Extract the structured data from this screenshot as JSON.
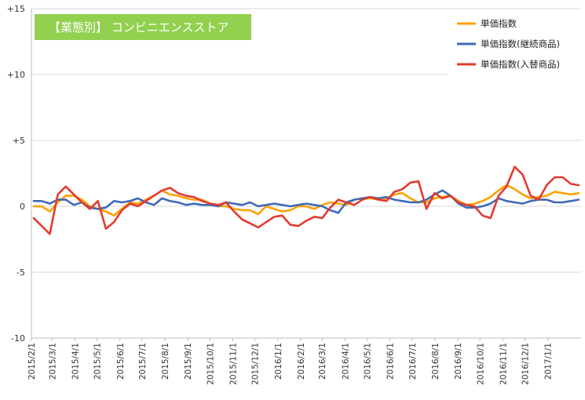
{
  "chart_data": {
    "type": "line",
    "title": "【業態別】 コンビニエンスストア",
    "title_bg": "#92d050",
    "ylim": [
      -10,
      15
    ],
    "yticks": [
      {
        "value": 15,
        "label": "+15"
      },
      {
        "value": 10,
        "label": "+10"
      },
      {
        "value": 5,
        "label": "+5"
      },
      {
        "value": 0,
        "label": "0"
      },
      {
        "value": -5,
        "label": "-5"
      },
      {
        "value": -10,
        "label": "-10"
      }
    ],
    "grid": true,
    "legend_position": "top-right",
    "x_start": "2015/2/1",
    "x_end": "2017/2/15",
    "x_ticks": [
      "2015/2/1",
      "2015/3/1",
      "2015/4/1",
      "2015/5/1",
      "2015/6/1",
      "2015/7/1",
      "2015/8/1",
      "2015/9/1",
      "2015/10/1",
      "2015/11/1",
      "2015/12/1",
      "2016/1/1",
      "2016/2/1",
      "2016/3/1",
      "2016/4/1",
      "2016/5/1",
      "2016/6/1",
      "2016/7/1",
      "2016/8/1",
      "2016/9/1",
      "2016/10/1",
      "2016/11/1",
      "2016/12/1",
      "2017/1/1"
    ],
    "series": [
      {
        "name": "単価指数",
        "color": "#ffa000",
        "values": [
          0,
          0,
          -0.4,
          0.3,
          0.8,
          0.8,
          0.5,
          0,
          -0.2,
          -0.4,
          -0.7,
          -0.2,
          0.3,
          0.2,
          0.5,
          0.8,
          1.2,
          0.9,
          0.8,
          0.6,
          0.5,
          0.5,
          0.2,
          0,
          0,
          -0.2,
          -0.3,
          -0.3,
          -0.6,
          0,
          -0.2,
          -0.4,
          -0.3,
          0,
          0,
          -0.2,
          0.1,
          0.3,
          0.2,
          0.1,
          0.5,
          0.6,
          0.6,
          0.5,
          0.6,
          0.9,
          1.0,
          0.6,
          0.3,
          0.3,
          0.6,
          0.7,
          0.8,
          0.4,
          0.1,
          0.2,
          0.4,
          0.7,
          1.2,
          1.6,
          1.3,
          0.9,
          0.6,
          0.7,
          0.8,
          1.1,
          1.0,
          0.9,
          1.0
        ]
      },
      {
        "name": "単価指数(継続商品)",
        "color": "#3f69b8",
        "values": [
          0.4,
          0.4,
          0.2,
          0.5,
          0.5,
          0.1,
          0.3,
          -0.1,
          -0.2,
          -0.1,
          0.4,
          0.3,
          0.4,
          0.6,
          0.3,
          0.1,
          0.6,
          0.4,
          0.3,
          0.1,
          0.2,
          0.1,
          0.1,
          0,
          0.3,
          0.2,
          0.1,
          0.3,
          0,
          0.1,
          0.2,
          0.1,
          0,
          0.1,
          0.2,
          0.1,
          0,
          -0.3,
          -0.5,
          0.3,
          0.5,
          0.6,
          0.7,
          0.6,
          0.7,
          0.5,
          0.4,
          0.3,
          0.3,
          0.5,
          0.9,
          1.2,
          0.8,
          0.2,
          -0.1,
          -0.1,
          0,
          0.2,
          0.6,
          0.4,
          0.3,
          0.2,
          0.4,
          0.5,
          0.5,
          0.3,
          0.3,
          0.4,
          0.5
        ]
      },
      {
        "name": "単価指数(入替商品)",
        "color": "#e23b2e",
        "values": [
          -0.9,
          -1.5,
          -2.1,
          0.9,
          1.5,
          0.9,
          0.3,
          -0.2,
          0.4,
          -1.7,
          -1.2,
          -0.3,
          0.2,
          0,
          0.4,
          0.8,
          1.2,
          1.4,
          1.0,
          0.8,
          0.7,
          0.4,
          0.2,
          0.1,
          0.3,
          -0.4,
          -1.0,
          -1.3,
          -1.6,
          -1.2,
          -0.8,
          -0.7,
          -1.4,
          -1.5,
          -1.1,
          -0.8,
          -0.9,
          -0.1,
          0.5,
          0.3,
          0.1,
          0.5,
          0.7,
          0.5,
          0.4,
          1.1,
          1.3,
          1.8,
          1.9,
          -0.2,
          1.0,
          0.6,
          0.8,
          0.3,
          0.1,
          0,
          -0.7,
          -0.9,
          0.8,
          1.5,
          3.0,
          2.4,
          0.8,
          0.5,
          1.6,
          2.2,
          2.2,
          1.7,
          1.6
        ]
      }
    ]
  }
}
